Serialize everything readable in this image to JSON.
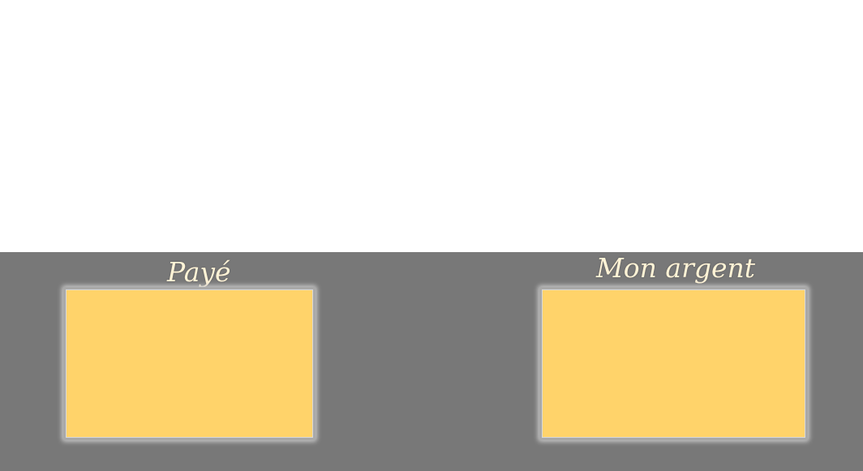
{
  "game": {
    "paid_label": "Payé",
    "my_money_label": "Mon argent"
  },
  "colors": {
    "panel_background": "#787878",
    "box_fill": "#ffd36a",
    "label_color": "#fff3d6"
  }
}
